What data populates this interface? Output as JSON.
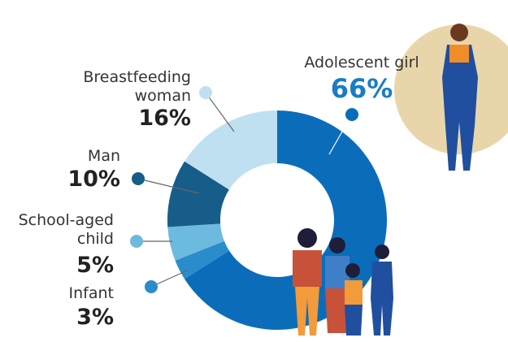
{
  "chart_data": {
    "type": "donut",
    "categories": [
      "Adolescent girl",
      "Infant",
      "School-aged child",
      "Man",
      "Breastfeeding woman"
    ],
    "values": [
      66,
      3,
      5,
      10,
      16
    ],
    "value_labels": [
      "66%",
      "3%",
      "5%",
      "10%",
      "16%"
    ],
    "colors": [
      "#0b6dba",
      "#2b8ccb",
      "#6dbadf",
      "#175d89",
      "#bfe0f1"
    ]
  }
}
